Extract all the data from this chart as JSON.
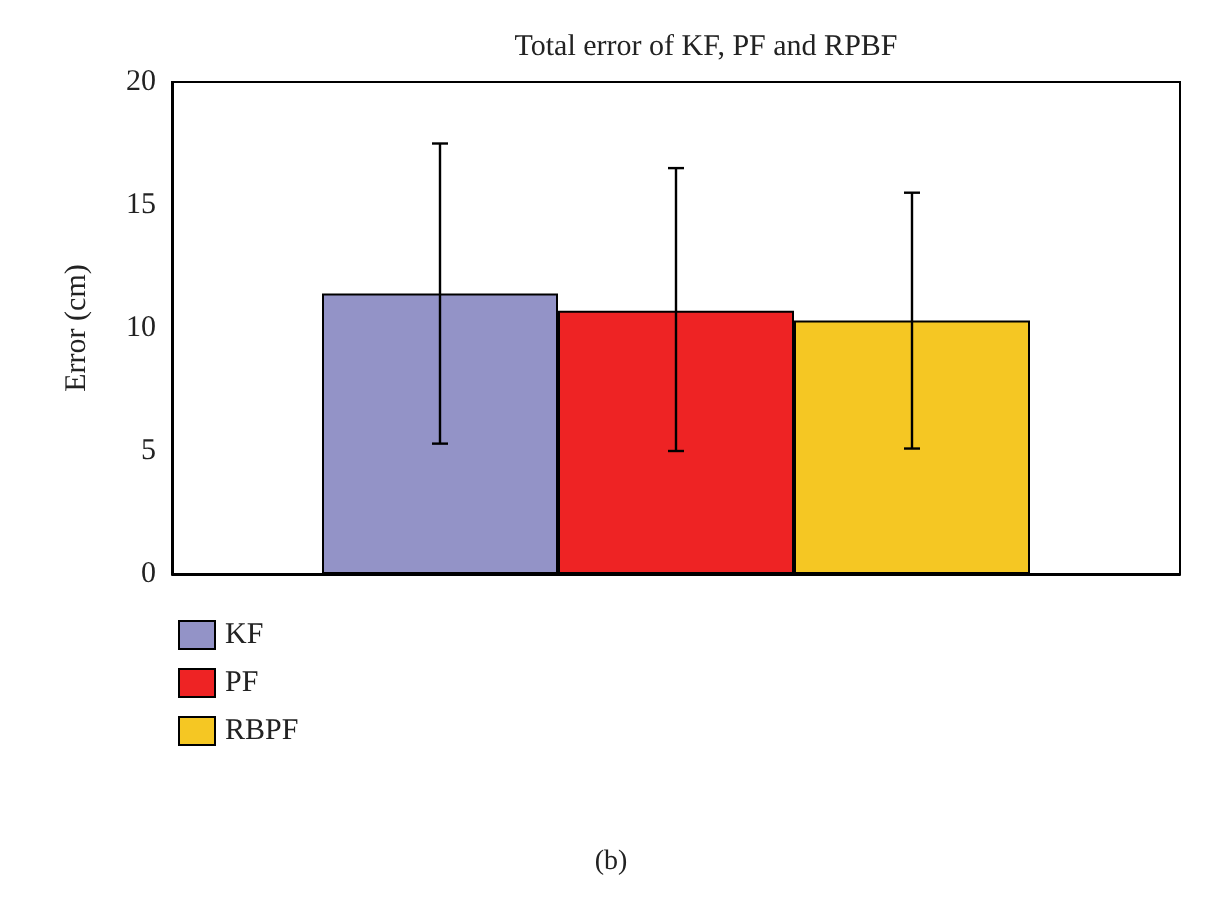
{
  "chart_data": {
    "type": "bar",
    "title": "Total error of KF, PF and RPBF",
    "ylabel": "Error (cm)",
    "categories": [
      null
    ],
    "series": [
      {
        "name": "KF",
        "color": "#9393c7",
        "values": [
          11.4
        ],
        "errors": [
          [
            5.3,
            17.5
          ]
        ]
      },
      {
        "name": "PF",
        "color": "#ee2324",
        "values": [
          10.7
        ],
        "errors": [
          [
            5.0,
            16.5
          ]
        ]
      },
      {
        "name": "RBPF",
        "color": "#f5c723",
        "values": [
          10.3
        ],
        "errors": [
          [
            5.1,
            15.5
          ]
        ]
      }
    ],
    "ylim": [
      0,
      20
    ],
    "yticks": [
      0,
      5,
      10,
      15,
      20
    ],
    "grid": false,
    "legend": "bottom left",
    "annotations": [
      "(b)"
    ]
  }
}
